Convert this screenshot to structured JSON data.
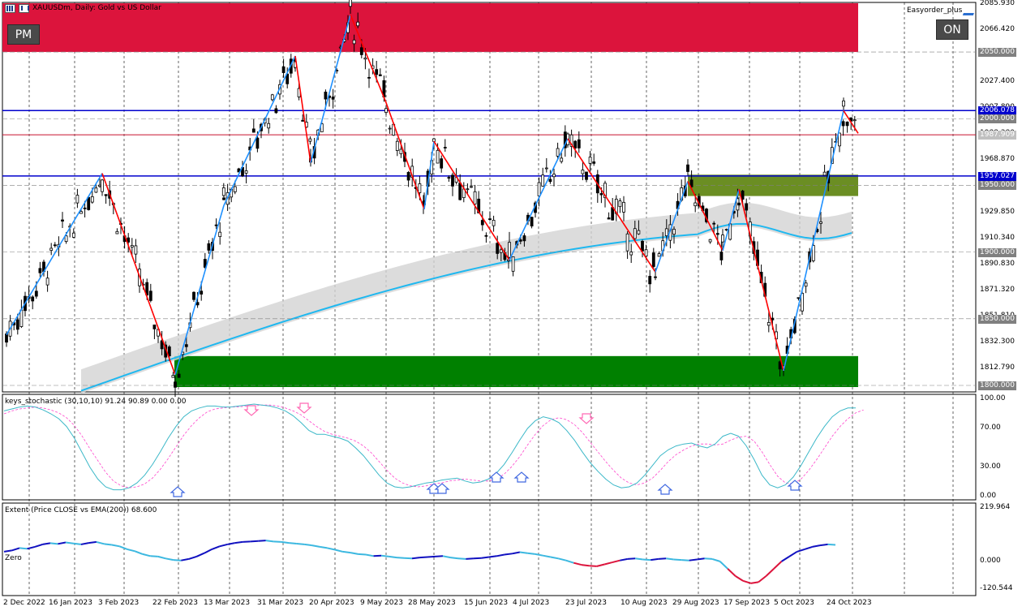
{
  "window": {
    "symbol_title": "XAUUSDm, Daily:  Gold vs US Dollar",
    "plugin_name": "Easyorder_plus",
    "pm_label": "PM",
    "on_label": "ON"
  },
  "colors": {
    "supply_zone": "#dc143c",
    "demand_zone": "#008000",
    "mid_zone": "#6b8e23",
    "blue_line": "#0000cd",
    "red_line": "#c8102e",
    "zigzag_up": "#1e90ff",
    "zigzag_down": "#ff0000",
    "ema": "#1fb8f0",
    "band": "#d3d3d3",
    "bull_candle": "#ffffff",
    "bear_candle": "#000000"
  },
  "price_axis": {
    "labels": [
      "2085.930",
      "2066.420",
      "2046.910",
      "2027.400",
      "2007.890",
      "1988.380",
      "1968.870",
      "1949.360",
      "1929.850",
      "1910.340",
      "1890.830",
      "1871.320",
      "1851.810",
      "1832.300",
      "1812.790"
    ],
    "tags": [
      {
        "value": "2050.000",
        "color": "#808080"
      },
      {
        "value": "2006.078",
        "color": "#0000cd"
      },
      {
        "value": "2000.000",
        "color": "#808080"
      },
      {
        "value": "1987.909",
        "color": "#c0c0c0"
      },
      {
        "value": "1957.027",
        "color": "#0000cd"
      },
      {
        "value": "1950.000",
        "color": "#808080"
      },
      {
        "value": "1900.000",
        "color": "#808080"
      },
      {
        "value": "1850.000",
        "color": "#808080"
      },
      {
        "value": "1800.000",
        "color": "#808080"
      }
    ]
  },
  "date_axis": [
    "2 Dec 2022",
    "16 Jan 2023",
    "3 Feb 2023",
    "22 Feb 2023",
    "13 Mar 2023",
    "31 Mar 2023",
    "20 Apr 2023",
    "9 May 2023",
    "28 May 2023",
    "15 Jun 2023",
    "4 Jul 2023",
    "23 Jul 2023",
    "10 Aug 2023",
    "29 Aug 2023",
    "17 Sep 2023",
    "5 Oct 2023",
    "24 Oct 2023"
  ],
  "stochastic": {
    "label": "keys_stochastic (30,10,10) 91.24 90.89 0.00 0.00",
    "axis": [
      "100.00",
      "70.00",
      "30.00",
      "0.00"
    ],
    "k": [
      88,
      90,
      92,
      93,
      92,
      89,
      85,
      80,
      72,
      60,
      45,
      30,
      18,
      10,
      7,
      7,
      9,
      14,
      22,
      33,
      46,
      60,
      72,
      82,
      88,
      91,
      93,
      93,
      92,
      92,
      93,
      94,
      95,
      94,
      93,
      91,
      88,
      83,
      76,
      68,
      64,
      64,
      62,
      60,
      57,
      50,
      42,
      32,
      22,
      14,
      10,
      9,
      10,
      12,
      14,
      15,
      17,
      18,
      19,
      16,
      14,
      15,
      18,
      24,
      33,
      45,
      58,
      70,
      78,
      82,
      80,
      76,
      68,
      58,
      46,
      35,
      26,
      18,
      12,
      9,
      10,
      14,
      22,
      32,
      42,
      48,
      52,
      54,
      55,
      52,
      50,
      54,
      62,
      65,
      62,
      52,
      38,
      22,
      12,
      9,
      12,
      20,
      32,
      46,
      60,
      72,
      82,
      88,
      91,
      91
    ],
    "d": [
      85,
      88,
      90,
      91,
      92,
      91,
      89,
      86,
      81,
      73,
      62,
      49,
      37,
      25,
      16,
      11,
      9,
      10,
      13,
      19,
      28,
      39,
      51,
      63,
      73,
      81,
      87,
      90,
      91,
      92,
      92,
      93,
      93,
      94,
      94,
      93,
      91,
      88,
      84,
      78,
      72,
      67,
      64,
      62,
      60,
      57,
      52,
      45,
      36,
      27,
      19,
      14,
      11,
      10,
      11,
      13,
      14,
      16,
      17,
      18,
      17,
      16,
      16,
      18,
      23,
      31,
      41,
      53,
      64,
      73,
      79,
      81,
      79,
      74,
      66,
      56,
      46,
      36,
      27,
      19,
      14,
      12,
      14,
      19,
      27,
      36,
      43,
      48,
      52,
      54,
      54,
      53,
      54,
      58,
      61,
      62,
      57,
      46,
      33,
      21,
      14,
      13,
      18,
      27,
      38,
      50,
      62,
      72,
      80,
      86,
      89
    ]
  },
  "extent": {
    "label": "Extent (Price CLOSE vs EMA(200)) 68.600",
    "axis": [
      "219.964",
      "0.000",
      "-120.544"
    ],
    "zero_label": "Zero",
    "values": [
      40,
      45,
      55,
      52,
      60,
      70,
      75,
      72,
      78,
      74,
      70,
      76,
      80,
      72,
      68,
      62,
      50,
      42,
      30,
      22,
      20,
      12,
      6,
      4,
      10,
      20,
      34,
      50,
      62,
      70,
      76,
      80,
      82,
      84,
      86,
      82,
      80,
      76,
      73,
      70,
      66,
      60,
      55,
      48,
      40,
      36,
      30,
      28,
      22,
      24,
      20,
      16,
      14,
      12,
      16,
      18,
      20,
      22,
      16,
      12,
      10,
      12,
      14,
      18,
      22,
      28,
      32,
      38,
      34,
      30,
      24,
      18,
      12,
      4,
      -6,
      -14,
      -18,
      -20,
      -12,
      -4,
      4,
      10,
      12,
      8,
      6,
      10,
      12,
      8,
      6,
      4,
      8,
      12,
      10,
      0,
      -30,
      -60,
      -80,
      -90,
      -85,
      -60,
      -30,
      0,
      20,
      40,
      50,
      60,
      66,
      70,
      68
    ]
  },
  "chart_data": {
    "type": "line",
    "title": "XAUUSDm, Daily:  Gold vs US Dollar",
    "ylim": [
      1800,
      2085.93
    ],
    "zigzag_points": [
      {
        "x": "2 Dec 2022",
        "y": 1838
      },
      {
        "x": "3 Feb 2023",
        "y": 1959
      },
      {
        "x": "22 Feb 2023",
        "y": 1808
      },
      {
        "x": "13 Mar 2023",
        "y": 1935
      },
      {
        "x": "31 Mar 2023",
        "y": 2047
      },
      {
        "x": "3 Apr 2023",
        "y": 1967
      },
      {
        "x": "20 Apr 2023",
        "y": 2078
      },
      {
        "x": "9 May 2023",
        "y": 2012
      },
      {
        "x": "28 May 2023",
        "y": 1932
      },
      {
        "x": "1 Jun 2023",
        "y": 1983
      },
      {
        "x": "20 Jun 2023",
        "y": 1894
      },
      {
        "x": "4 Jul 2023",
        "y": 1935
      },
      {
        "x": "20 Jul 2023",
        "y": 1985
      },
      {
        "x": "10 Aug 2023",
        "y": 1885
      },
      {
        "x": "29 Aug 2023",
        "y": 1953
      },
      {
        "x": "14 Sep 2023",
        "y": 1901
      },
      {
        "x": "19 Sep 2023",
        "y": 1947
      },
      {
        "x": "5 Oct 2023",
        "y": 1811
      },
      {
        "x": "24 Oct 2023",
        "y": 2006
      },
      {
        "x": "27 Oct 2023",
        "y": 1989
      }
    ],
    "horizontal_lines": [
      {
        "y": 2006.078,
        "color": "#0000cd"
      },
      {
        "y": 1987.909,
        "color": "#c8102e"
      },
      {
        "y": 1957.027,
        "color": "#0000cd"
      }
    ]
  }
}
